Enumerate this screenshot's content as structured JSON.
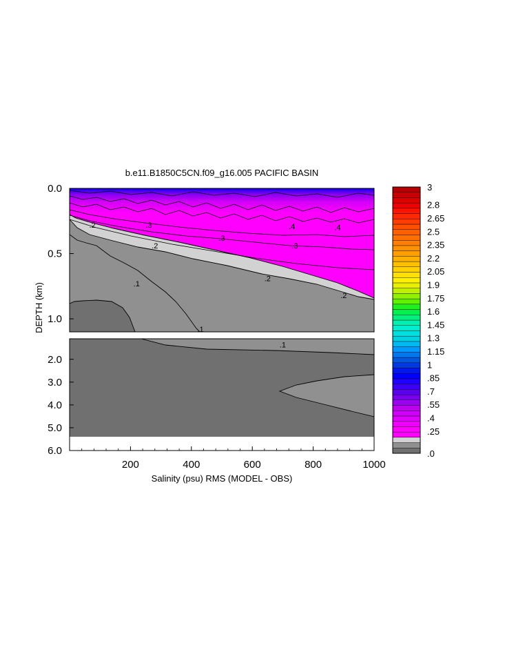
{
  "chart_data": {
    "type": "heatmap",
    "title": "b.e11.B1850C5CN.f09_g16.005 PACIFIC BASIN",
    "xlabel": "Salinity (psu) RMS (MODEL - OBS)",
    "ylabel": "DEPTH (km)",
    "xlim": [
      0,
      1000
    ],
    "x_ticks": [
      "200",
      "400",
      "600",
      "800",
      "1000"
    ],
    "upper_panel": {
      "ylim": [
        0.0,
        1.1
      ],
      "y_ticks": [
        "0.0",
        "0.5",
        "1.0"
      ]
    },
    "lower_panel": {
      "ylim": [
        1.1,
        6.0
      ],
      "y_ticks": [
        "2.0",
        "3.0",
        "4.0",
        "5.0",
        "6.0"
      ]
    },
    "contour_labels_upper": [
      {
        "text": ".2",
        "x": 75,
        "y": 0.28
      },
      {
        "text": ".3",
        "x": 260,
        "y": 0.28
      },
      {
        "text": ".4",
        "x": 730,
        "y": 0.29
      },
      {
        "text": ".4",
        "x": 880,
        "y": 0.3
      },
      {
        "text": ".3",
        "x": 500,
        "y": 0.38
      },
      {
        "text": ".3",
        "x": 740,
        "y": 0.44
      },
      {
        "text": ".2",
        "x": 280,
        "y": 0.44
      },
      {
        "text": ".2",
        "x": 650,
        "y": 0.69
      },
      {
        "text": ".2",
        "x": 900,
        "y": 0.82
      },
      {
        "text": ".1",
        "x": 220,
        "y": 0.73
      },
      {
        "text": ".1",
        "x": 430,
        "y": 1.08
      }
    ],
    "contour_labels_lower": [
      {
        "text": ".1",
        "x": 700,
        "y": 1.35
      }
    ],
    "colorbar": {
      "labels": [
        "3",
        "2.8",
        "2.65",
        "2.5",
        "2.35",
        "2.2",
        "2.05",
        "1.9",
        "1.75",
        "1.6",
        "1.45",
        "1.3",
        "1.15",
        "1",
        ".85",
        ".7",
        ".55",
        ".4",
        ".25",
        ".0"
      ],
      "label_values": [
        3.0,
        2.8,
        2.65,
        2.5,
        2.35,
        2.2,
        2.05,
        1.9,
        1.75,
        1.6,
        1.45,
        1.3,
        1.15,
        1.0,
        0.85,
        0.7,
        0.55,
        0.4,
        0.25,
        0.0
      ],
      "colors": [
        "#707070",
        "#909090",
        "#d2d2d2",
        "#ff00ff",
        "#ff00ff",
        "#ef00ff",
        "#e000ff",
        "#cf00f8",
        "#be00f0",
        "#9c00f0",
        "#7c00f0",
        "#5a00f0",
        "#3c00f8",
        "#2000ff",
        "#0000ff",
        "#0018f0",
        "#0038e0",
        "#0058e0",
        "#0078f0",
        "#0098ff",
        "#00b8f0",
        "#00d0e0",
        "#00e0e0",
        "#00eed0",
        "#00f0b0",
        "#00f080",
        "#00f050",
        "#20f020",
        "#60f000",
        "#90f000",
        "#c0f000",
        "#e8f000",
        "#fff000",
        "#ffe000",
        "#ffd000",
        "#ffc000",
        "#ffb000",
        "#ffa000",
        "#ff9000",
        "#ff8000",
        "#ff7000",
        "#ff6000",
        "#ff5000",
        "#ff3c00",
        "#ff2800",
        "#ff1400",
        "#f00000",
        "#dc0000",
        "#c80000",
        "#b40000"
      ]
    }
  }
}
